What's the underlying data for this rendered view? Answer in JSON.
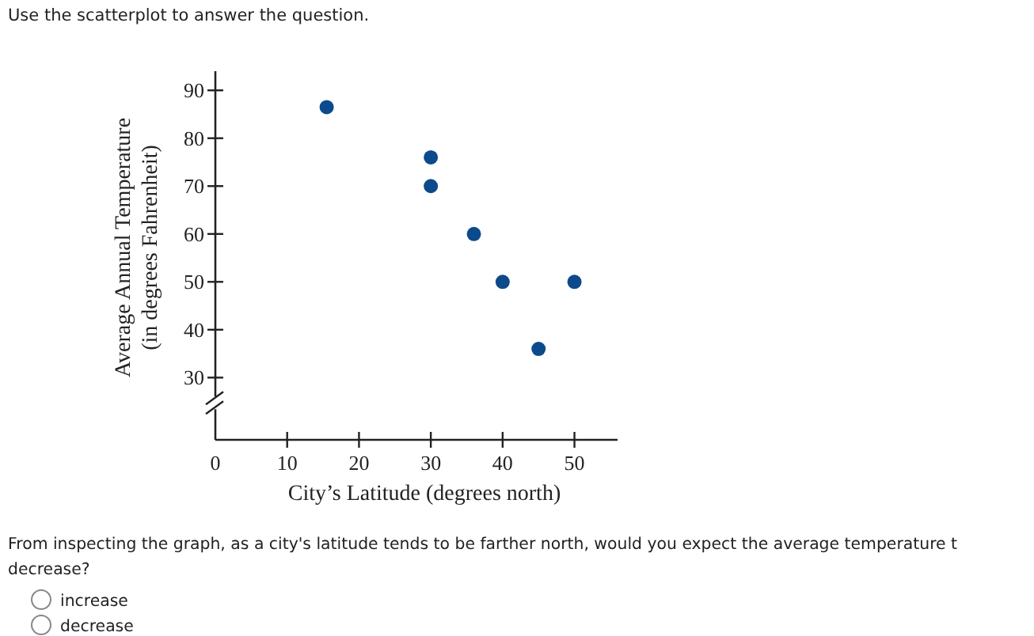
{
  "chart_data": {
    "type": "scatter",
    "title": "Use the scatterplot to answer the question.",
    "xlabel": "City’s Latitude (degrees north)",
    "ylabel": "Average Annual Temperature\n(in degrees Fahrenheit)",
    "x": [
      15.5,
      30,
      30,
      36,
      40,
      45,
      50
    ],
    "series": [
      {
        "color": "#0d4a8c",
        "values": [
          86.5,
          76,
          70,
          60,
          50,
          36,
          50
        ]
      }
    ],
    "marker": "circle",
    "grid": false,
    "xlim": [
      0,
      56
    ],
    "xticks": [
      0,
      10,
      20,
      30,
      40,
      50
    ],
    "ylim": [
      17,
      94
    ],
    "yticks": [
      30,
      40,
      50,
      60,
      70,
      80,
      90
    ],
    "annotations": [
      "From inspecting the graph, as a city's latitude tends to be farther north, would you expect the average temperature t",
      "decrease?",
      "increase",
      "decrease"
    ]
  }
}
